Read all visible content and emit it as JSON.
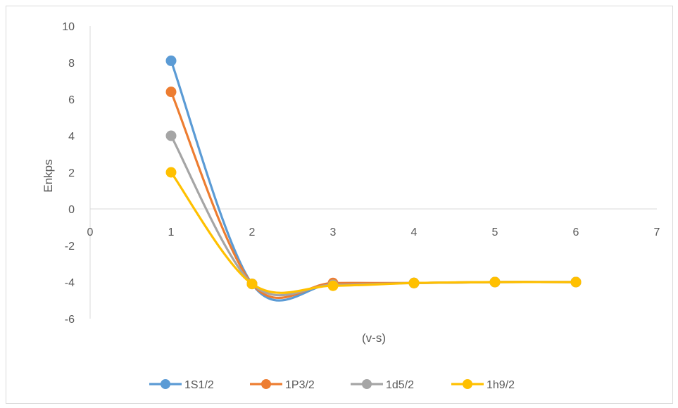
{
  "chart_data": {
    "type": "line",
    "title": "",
    "xlabel": "(v-s)",
    "ylabel": "Enkps",
    "xlim": [
      0,
      7
    ],
    "ylim": [
      -6,
      10
    ],
    "x_ticks": [
      0,
      1,
      2,
      3,
      4,
      5,
      6,
      7
    ],
    "y_ticks": [
      10,
      8,
      6,
      4,
      2,
      0,
      -2,
      -4,
      -6
    ],
    "grid": false,
    "smooth": true,
    "legend_position": "bottom",
    "x": [
      1,
      2,
      3,
      4,
      5,
      6
    ],
    "series": [
      {
        "name": "1S1/2",
        "color": "#5B9BD5",
        "values": [
          8.1,
          -4.1,
          -4.1,
          -4.05,
          -4.0,
          -4.0
        ]
      },
      {
        "name": "1P3/2",
        "color": "#ED7D31",
        "values": [
          6.4,
          -4.1,
          -4.05,
          -4.05,
          -4.0,
          -4.0
        ]
      },
      {
        "name": "1d5/2",
        "color": "#A5A5A5",
        "values": [
          4.0,
          -4.1,
          -4.15,
          -4.05,
          -4.0,
          -4.0
        ]
      },
      {
        "name": "1h9/2",
        "color": "#FFC000",
        "values": [
          2.0,
          -4.1,
          -4.2,
          -4.05,
          -4.0,
          -4.0
        ]
      }
    ]
  }
}
